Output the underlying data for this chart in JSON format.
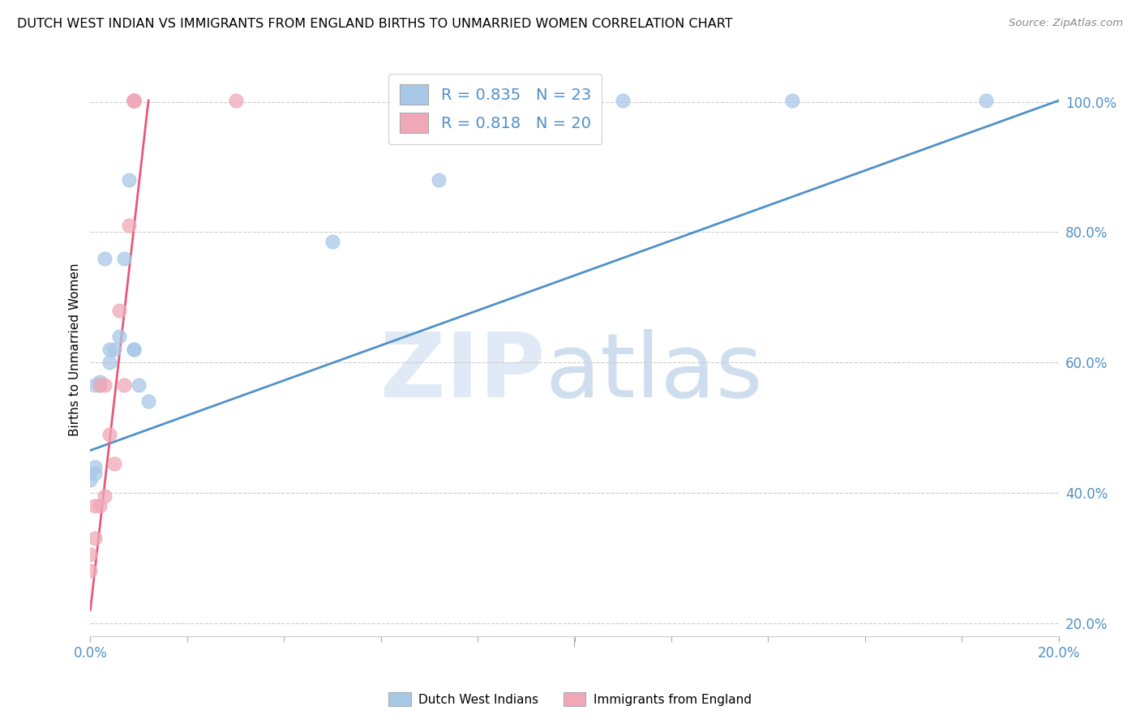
{
  "title": "DUTCH WEST INDIAN VS IMMIGRANTS FROM ENGLAND BIRTHS TO UNMARRIED WOMEN CORRELATION CHART",
  "source": "Source: ZipAtlas.com",
  "ylabel": "Births to Unmarried Women",
  "legend_label1": "Dutch West Indians",
  "legend_label2": "Immigrants from England",
  "R1": 0.835,
  "N1": 23,
  "R2": 0.818,
  "N2": 20,
  "blue_color": "#a8c8e8",
  "pink_color": "#f0a8b8",
  "blue_line_color": "#5090c8",
  "pink_line_color": "#e85878",
  "blue_x": [
    0.0,
    0.001,
    0.001,
    0.001,
    0.002,
    0.002,
    0.003,
    0.004,
    0.004,
    0.005,
    0.006,
    0.007,
    0.008,
    0.009,
    0.009,
    0.01,
    0.012,
    0.05,
    0.072,
    0.085,
    0.11,
    0.145,
    0.185
  ],
  "blue_y": [
    0.42,
    0.43,
    0.44,
    0.565,
    0.565,
    0.57,
    0.76,
    0.6,
    0.62,
    0.62,
    0.64,
    0.76,
    0.88,
    0.62,
    0.62,
    0.565,
    0.54,
    0.785,
    0.88,
    1.002,
    1.002,
    1.002,
    1.002
  ],
  "pink_x": [
    0.0,
    0.0,
    0.001,
    0.001,
    0.002,
    0.002,
    0.003,
    0.003,
    0.004,
    0.005,
    0.006,
    0.007,
    0.008,
    0.009,
    0.009,
    0.009,
    0.009,
    0.009,
    0.009,
    0.03
  ],
  "pink_y": [
    0.28,
    0.305,
    0.33,
    0.38,
    0.38,
    0.565,
    0.395,
    0.565,
    0.49,
    0.445,
    0.68,
    0.565,
    0.81,
    1.002,
    1.002,
    1.002,
    1.002,
    1.002,
    1.002,
    1.002
  ],
  "xmin": 0.0,
  "xmax": 0.2,
  "ymin": 0.18,
  "ymax": 1.06,
  "yticks": [
    0.2,
    0.4,
    0.6,
    0.8,
    1.0
  ],
  "ytick_labels": [
    "20.0%",
    "40.0%",
    "60.0%",
    "80.0%",
    "100.0%"
  ],
  "xticks": [
    0.0,
    0.02,
    0.04,
    0.06,
    0.08,
    0.1,
    0.12,
    0.14,
    0.16,
    0.18,
    0.2
  ],
  "xtick_labels": [
    "0.0%",
    "",
    "",
    "",
    "",
    "",
    "",
    "",
    "",
    "",
    "20.0%"
  ],
  "blue_line_x0": 0.0,
  "blue_line_x1": 0.2,
  "blue_line_y0": 0.465,
  "blue_line_y1": 1.002,
  "pink_line_x0": 0.0,
  "pink_line_x1": 0.012,
  "pink_line_y0": 0.22,
  "pink_line_y1": 1.002
}
